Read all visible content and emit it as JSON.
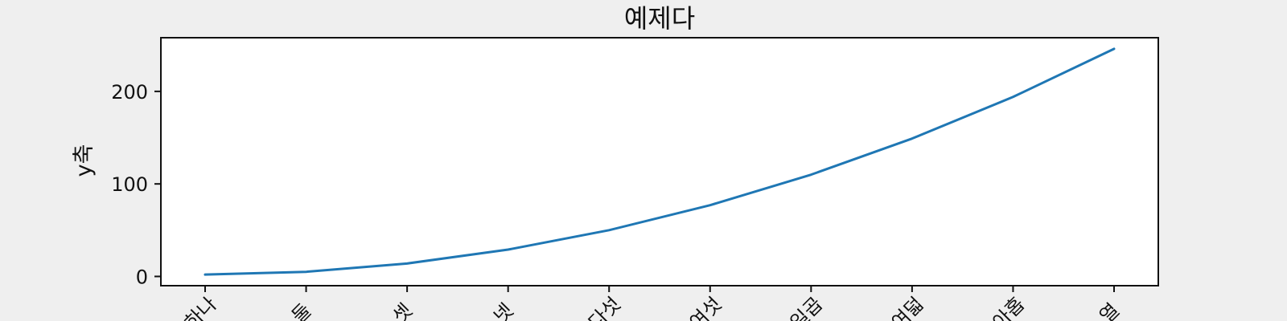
{
  "chart_data": {
    "type": "line",
    "title": "예제다",
    "xlabel": "",
    "ylabel": "y축",
    "categories": [
      "하나",
      "둘",
      "셋",
      "넷",
      "다섯",
      "여섯",
      "일곱",
      "여덟",
      "아홉",
      "열"
    ],
    "series": [
      {
        "values": [
          2,
          5,
          14,
          29,
          50,
          77,
          110,
          149,
          194,
          246
        ],
        "color": "#1f77b4"
      }
    ],
    "ylim": [
      -10,
      258
    ],
    "yticks": [
      0,
      100,
      200
    ],
    "grid": false,
    "x_tick_rotation": -45
  }
}
